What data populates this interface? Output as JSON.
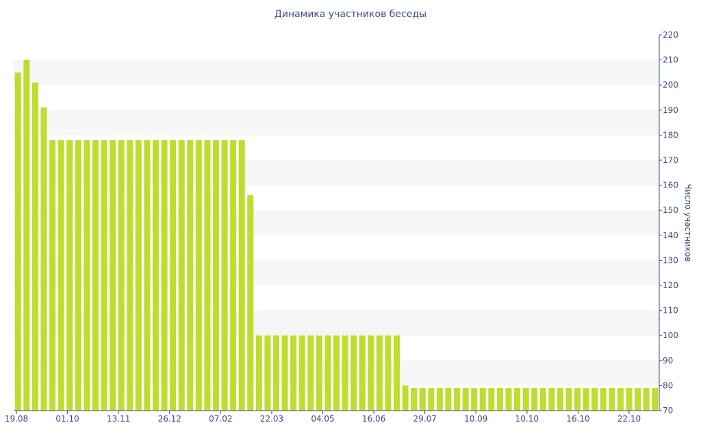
{
  "colors": {
    "bar": "#bfdd30",
    "band": "#f6f6f6",
    "axis": "#3a4c80",
    "text": "#3a4c80"
  },
  "chart_data": {
    "type": "bar",
    "title": "Динамика участников беседы",
    "ylabel": "Число участников",
    "xlabel": "",
    "ylim": [
      70,
      220
    ],
    "y_ticks": [
      70,
      80,
      90,
      100,
      110,
      120,
      130,
      140,
      150,
      160,
      170,
      180,
      190,
      200,
      210,
      220
    ],
    "y_axis_side": "right",
    "grid": "alternating horizontal bands",
    "legend": "none",
    "x_tick_labels": [
      "19.08",
      "01.10",
      "13.11",
      "26.12",
      "07.02",
      "22.03",
      "04.05",
      "16.06",
      "29.07",
      "10.09",
      "10.10",
      "16.10",
      "22.10"
    ],
    "series": [
      {
        "values": [
          205,
          210,
          201,
          191,
          178,
          178,
          178,
          178,
          178,
          178,
          178,
          178,
          178,
          178,
          178,
          178,
          178,
          178,
          178,
          178,
          178,
          178,
          178,
          178,
          178,
          178,
          178,
          156,
          100,
          100,
          100,
          100,
          100,
          100,
          100,
          100,
          100,
          100,
          100,
          100,
          100,
          100,
          100,
          100,
          100,
          80,
          79,
          79,
          79,
          79,
          79,
          79,
          79,
          79,
          79,
          79,
          79,
          79,
          79,
          79,
          79,
          79,
          79,
          79,
          79,
          79,
          79,
          79,
          79,
          79,
          79,
          79,
          79,
          79,
          79
        ]
      }
    ]
  }
}
